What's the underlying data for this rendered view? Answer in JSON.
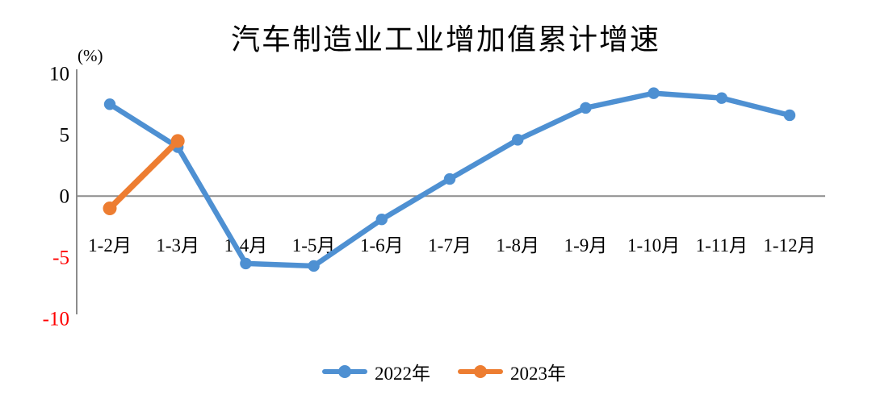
{
  "page": {
    "background": "#ffffff"
  },
  "chart_data": {
    "type": "line",
    "title": "汽车制造业工业增加值累计增速",
    "unit_label": "(%)",
    "categories": [
      "1-2月",
      "1-3月",
      "1-4月",
      "1-5月",
      "1-6月",
      "1-7月",
      "1-8月",
      "1-9月",
      "1-10月",
      "1-11月",
      "1-12月"
    ],
    "series": [
      {
        "name": "2022年",
        "color": "#4E90D2",
        "marker": "circle",
        "values": [
          7.5,
          4.0,
          -5.5,
          -5.7,
          -1.9,
          1.4,
          4.6,
          7.2,
          8.4,
          8.0,
          6.6
        ]
      },
      {
        "name": "2023年",
        "color": "#ED7D31",
        "marker": "circle",
        "values": [
          -1.0,
          4.5
        ]
      }
    ],
    "y_ticks": [
      10,
      5,
      0,
      -5,
      -10
    ],
    "ylim": [
      -10,
      10
    ],
    "grid": false,
    "zero_line": true,
    "legend_position": "bottom",
    "axis_color": "#8C8C8C",
    "positive_tick_color": "#000000",
    "negative_tick_color": "#FF0000"
  }
}
